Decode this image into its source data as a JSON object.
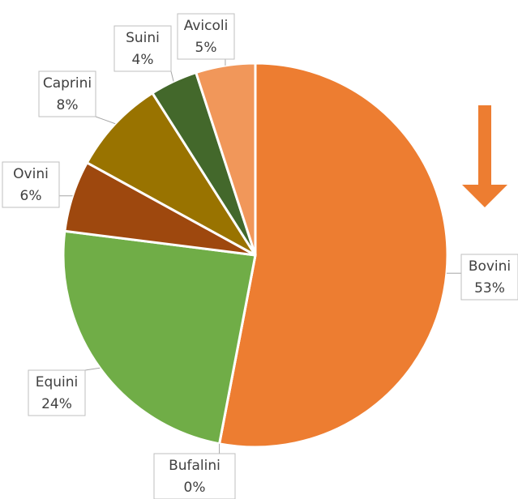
{
  "chart_data": {
    "type": "pie",
    "categories": [
      "Bovini",
      "Bufalini",
      "Equini",
      "Ovini",
      "Caprini",
      "Suini",
      "Avicoli"
    ],
    "values": [
      53,
      0,
      24,
      6,
      8,
      4,
      5
    ],
    "value_labels": [
      "53%",
      "0%",
      "24%",
      "6%",
      "8%",
      "4%",
      "5%"
    ],
    "colors": [
      "#ED7D31",
      "#7F7F7F",
      "#70AD47",
      "#9E480E",
      "#997300",
      "#43682B",
      "#F1975A"
    ]
  }
}
